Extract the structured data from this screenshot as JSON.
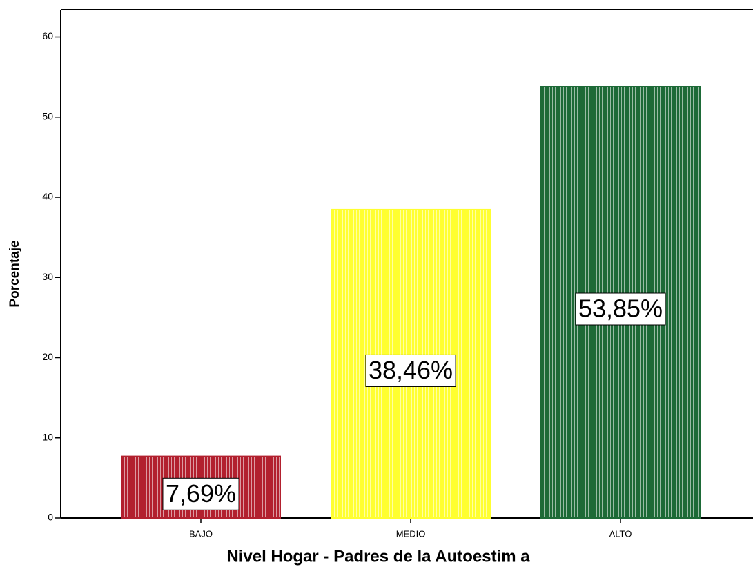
{
  "chart_data": {
    "type": "bar",
    "categories": [
      "BAJO",
      "MEDIO",
      "ALTO"
    ],
    "values": [
      7.69,
      38.46,
      53.85
    ],
    "value_labels": [
      "7,69%",
      "38,46%",
      "53,85%"
    ],
    "colors": [
      "#b2202e",
      "#ffff30",
      "#1d6a37"
    ],
    "xlabel": "Nivel Hogar - Padres de la Autoestim a",
    "ylabel": "Porcentaje",
    "ylim": [
      0,
      63.4
    ],
    "yticks": [
      0,
      10,
      20,
      30,
      40,
      50,
      60
    ],
    "grid": false
  }
}
